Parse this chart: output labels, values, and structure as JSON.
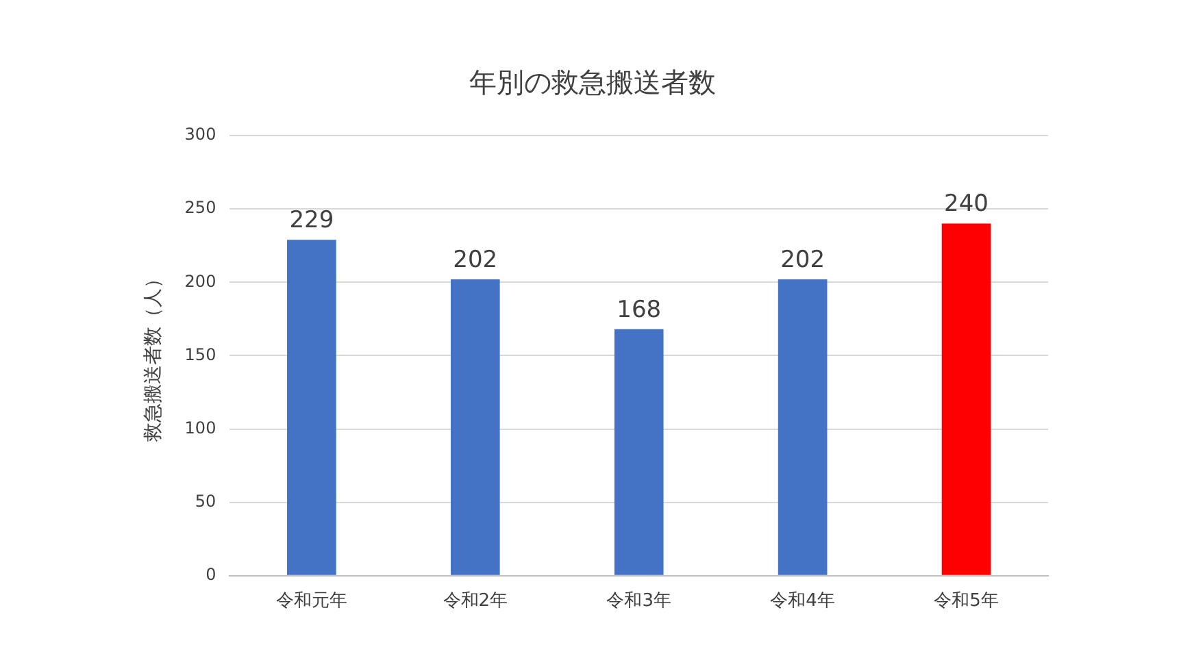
{
  "chart_data": {
    "type": "bar",
    "title": "年別の救急搬送者数",
    "ylabel": "救急搬送者数（人）",
    "categories": [
      "令和元年",
      "令和2年",
      "令和3年",
      "令和4年",
      "令和5年"
    ],
    "values": [
      229,
      202,
      168,
      202,
      240
    ],
    "colors": [
      "#4472c4",
      "#4472c4",
      "#4472c4",
      "#4472c4",
      "#ff0000"
    ],
    "ylim": [
      0,
      300
    ],
    "yticks": [
      0,
      50,
      100,
      150,
      200,
      250,
      300
    ],
    "grid": "y",
    "legend": false,
    "data_labels": true
  }
}
